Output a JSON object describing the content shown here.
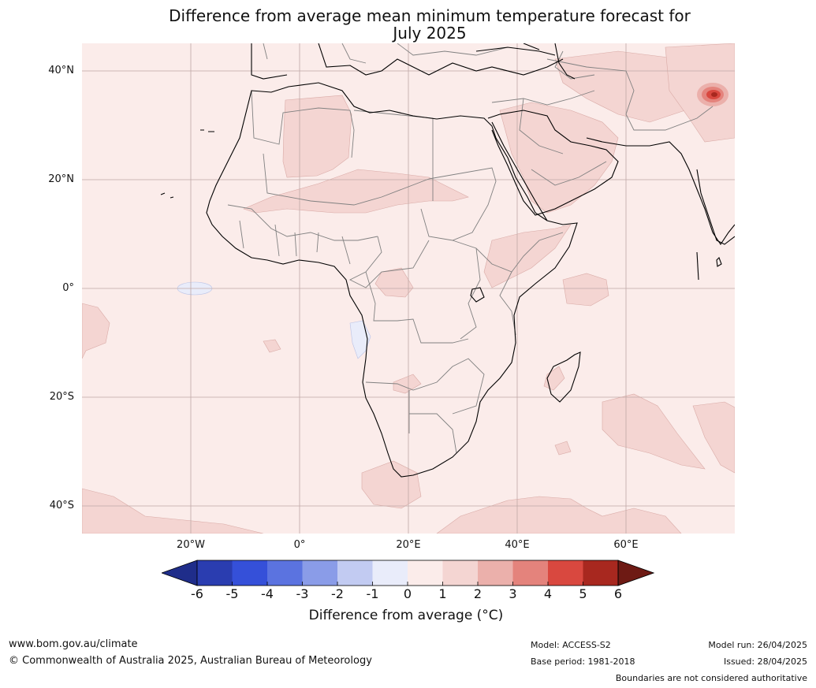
{
  "title_line1": "Difference from average mean minimum temperature forecast for",
  "title_line2": "July 2025",
  "axes": {
    "lat_labels": [
      "40°N",
      "20°N",
      "0°",
      "20°S",
      "40°S"
    ],
    "lon_labels": [
      "20°W",
      "0°",
      "20°E",
      "40°E",
      "60°E"
    ]
  },
  "colorbar": {
    "ticks": [
      "-6",
      "-5",
      "-4",
      "-3",
      "-2",
      "-1",
      "0",
      "1",
      "2",
      "3",
      "4",
      "5",
      "6"
    ],
    "colors": [
      "#1f2d8a",
      "#2a3db0",
      "#3550d9",
      "#5b73e0",
      "#8a9ce8",
      "#c2cbf2",
      "#e9ecfa",
      "#fbecea",
      "#f4d5d2",
      "#ebb0ab",
      "#e4837c",
      "#d9483f",
      "#a8281f",
      "#6e1a14"
    ],
    "title": "Difference from average ($^\\circ$C)",
    "title_display": "Difference from average (°C)"
  },
  "map_colors": {
    "ocean_base": "#fbecea",
    "anomaly_1_2": "#f4d5d2",
    "cool_spot": "#e9ecfa",
    "hot_spot": "#d9483f",
    "coast": "#000000",
    "borders": "#808080"
  },
  "footer": {
    "website": "www.bom.gov.au/climate",
    "copyright": "© Commonwealth of Australia 2025, Australian Bureau of Meteorology",
    "model": "Model: ACCESS-S2",
    "base_period": "Base period: 1981-2018",
    "model_run": "Model run: 26/04/2025",
    "issued": "Issued: 28/04/2025",
    "disclaimer": "Boundaries are not considered authoritative"
  }
}
